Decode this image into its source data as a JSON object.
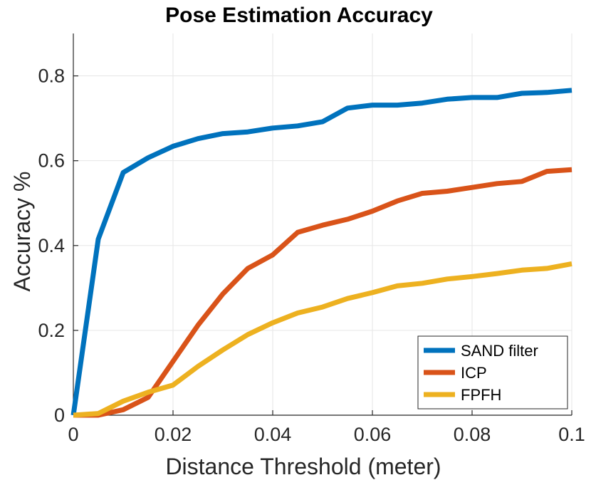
{
  "chart_data": {
    "type": "line",
    "title": "Pose Estimation Accuracy",
    "xlabel": "Distance Threshold (meter)",
    "ylabel": "Accuracy %",
    "xlim": [
      0,
      0.1
    ],
    "ylim": [
      0,
      0.9
    ],
    "grid": true,
    "legend_location": "bottom-right",
    "xticks": [
      0,
      0.02,
      0.04,
      0.06,
      0.08,
      0.1
    ],
    "xtick_labels": [
      "0",
      "0.02",
      "0.04",
      "0.06",
      "0.08",
      "0.1"
    ],
    "yticks": [
      0,
      0.2,
      0.4,
      0.6,
      0.8
    ],
    "ytick_labels": [
      "0",
      "0.2",
      "0.4",
      "0.6",
      "0.8"
    ],
    "x": [
      0,
      0.005,
      0.01,
      0.015,
      0.02,
      0.025,
      0.03,
      0.035,
      0.04,
      0.045,
      0.05,
      0.055,
      0.06,
      0.065,
      0.07,
      0.075,
      0.08,
      0.085,
      0.09,
      0.095,
      0.1
    ],
    "series": [
      {
        "name": "SAND filter",
        "color": "#0072BD",
        "values": [
          0.0,
          0.415,
          0.572,
          0.607,
          0.634,
          0.652,
          0.664,
          0.668,
          0.677,
          0.682,
          0.692,
          0.724,
          0.731,
          0.731,
          0.736,
          0.745,
          0.749,
          0.749,
          0.759,
          0.761,
          0.766
        ]
      },
      {
        "name": "ICP",
        "color": "#D95319",
        "values": [
          0.0,
          0.0,
          0.013,
          0.042,
          0.127,
          0.212,
          0.286,
          0.346,
          0.378,
          0.431,
          0.448,
          0.462,
          0.481,
          0.505,
          0.523,
          0.528,
          0.537,
          0.546,
          0.551,
          0.575,
          0.579
        ]
      },
      {
        "name": "FPFH",
        "color": "#EDB120",
        "values": [
          0.0,
          0.004,
          0.033,
          0.054,
          0.071,
          0.115,
          0.154,
          0.19,
          0.218,
          0.241,
          0.255,
          0.275,
          0.289,
          0.305,
          0.311,
          0.321,
          0.327,
          0.334,
          0.342,
          0.346,
          0.357
        ]
      }
    ]
  }
}
